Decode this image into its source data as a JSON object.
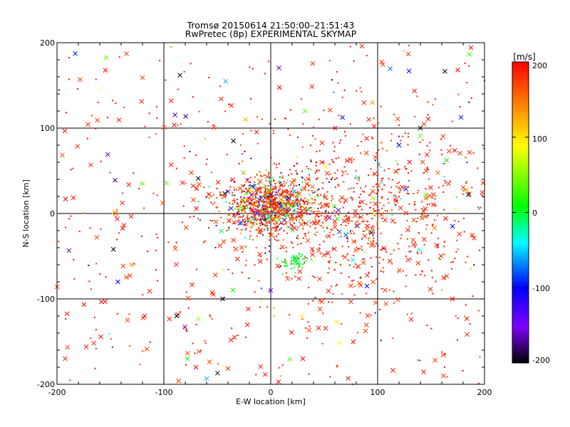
{
  "chart_data": {
    "type": "scatter",
    "title": "Tromsø 20150614 21:50:00–21:51:43",
    "subtitle": "RwPretec (8p) EXPERIMENTAL SKYMAP",
    "xlabel": "E-W location [km]",
    "ylabel": "N-S location [km]",
    "xlim": [
      -200,
      200
    ],
    "ylim": [
      -200,
      200
    ],
    "x_ticks": [
      "-200",
      "-100",
      "0",
      "100",
      "200"
    ],
    "y_ticks": [
      "-200",
      "-100",
      "0",
      "100",
      "200"
    ],
    "grid": true,
    "grid_lines_x": [
      -100,
      0,
      100
    ],
    "grid_lines_y": [
      -100,
      0,
      100
    ],
    "colorbar": {
      "label": "[m/s]",
      "range": [
        -200,
        200
      ],
      "ticks": [
        "200",
        "100",
        "0",
        "-100",
        "-200"
      ],
      "colors": [
        "#000000",
        "#7f00ff",
        "#0000ff",
        "#00ffff",
        "#00ff00",
        "#ffff00",
        "#ff7f00",
        "#ff0000"
      ]
    },
    "marker_types": [
      "x",
      "dot"
    ],
    "point_clusters": [
      {
        "center_x": 0,
        "center_y": 10,
        "spread_km": 22,
        "velocity_mix": "mixed"
      },
      {
        "center_x": 75,
        "center_y": 0,
        "spread_km": 85,
        "velocity_mix": "mostly_positive"
      },
      {
        "center_x": 22,
        "center_y": -57,
        "spread_km": 6,
        "velocity_mix": "near_zero"
      },
      {
        "center_x": 0,
        "center_y": 0,
        "spread_km": 150,
        "velocity_mix": "mostly_positive"
      }
    ],
    "sample_points": [
      {
        "x": -85,
        "y": 162,
        "v": -200,
        "m": "x"
      },
      {
        "x": 175,
        "y": 168,
        "v": 200,
        "m": "x"
      },
      {
        "x": 140,
        "y": 100,
        "v": -200,
        "m": "x"
      },
      {
        "x": -192,
        "y": 17,
        "v": 200,
        "m": "x"
      },
      {
        "x": -143,
        "y": -80,
        "v": -100,
        "m": "x"
      },
      {
        "x": -78,
        "y": -170,
        "v": 20,
        "m": "x"
      },
      {
        "x": -155,
        "y": -103,
        "v": 200,
        "m": "x"
      },
      {
        "x": 145,
        "y": 22,
        "v": 40,
        "m": "x"
      },
      {
        "x": 185,
        "y": 22,
        "v": -200,
        "m": "x"
      },
      {
        "x": -35,
        "y": 85,
        "v": -200,
        "m": "x"
      },
      {
        "x": -120,
        "y": 35,
        "v": 30,
        "m": "x"
      },
      {
        "x": -118,
        "y": -120,
        "v": 200,
        "m": "x"
      },
      {
        "x": 32,
        "y": 120,
        "v": 40,
        "m": "x"
      },
      {
        "x": -88,
        "y": -120,
        "v": -200,
        "m": "x"
      },
      {
        "x": 120,
        "y": 80,
        "v": -100,
        "m": "x"
      },
      {
        "x": 60,
        "y": 100,
        "v": 200,
        "m": "x"
      },
      {
        "x": -70,
        "y": -180,
        "v": 200,
        "m": "x"
      },
      {
        "x": 0,
        "y": -90,
        "v": -150,
        "m": "x"
      },
      {
        "x": 30,
        "y": -170,
        "v": 200,
        "m": "x"
      },
      {
        "x": 90,
        "y": -85,
        "v": -100,
        "m": "x"
      },
      {
        "x": 170,
        "y": -100,
        "v": 200,
        "m": "x"
      },
      {
        "x": -45,
        "y": -100,
        "v": -200,
        "m": "x"
      },
      {
        "x": 95,
        "y": 130,
        "v": 130,
        "m": "x"
      },
      {
        "x": 170,
        "y": -15,
        "v": -100,
        "m": "x"
      },
      {
        "x": -130,
        "y": -60,
        "v": 140,
        "m": "x"
      }
    ]
  }
}
